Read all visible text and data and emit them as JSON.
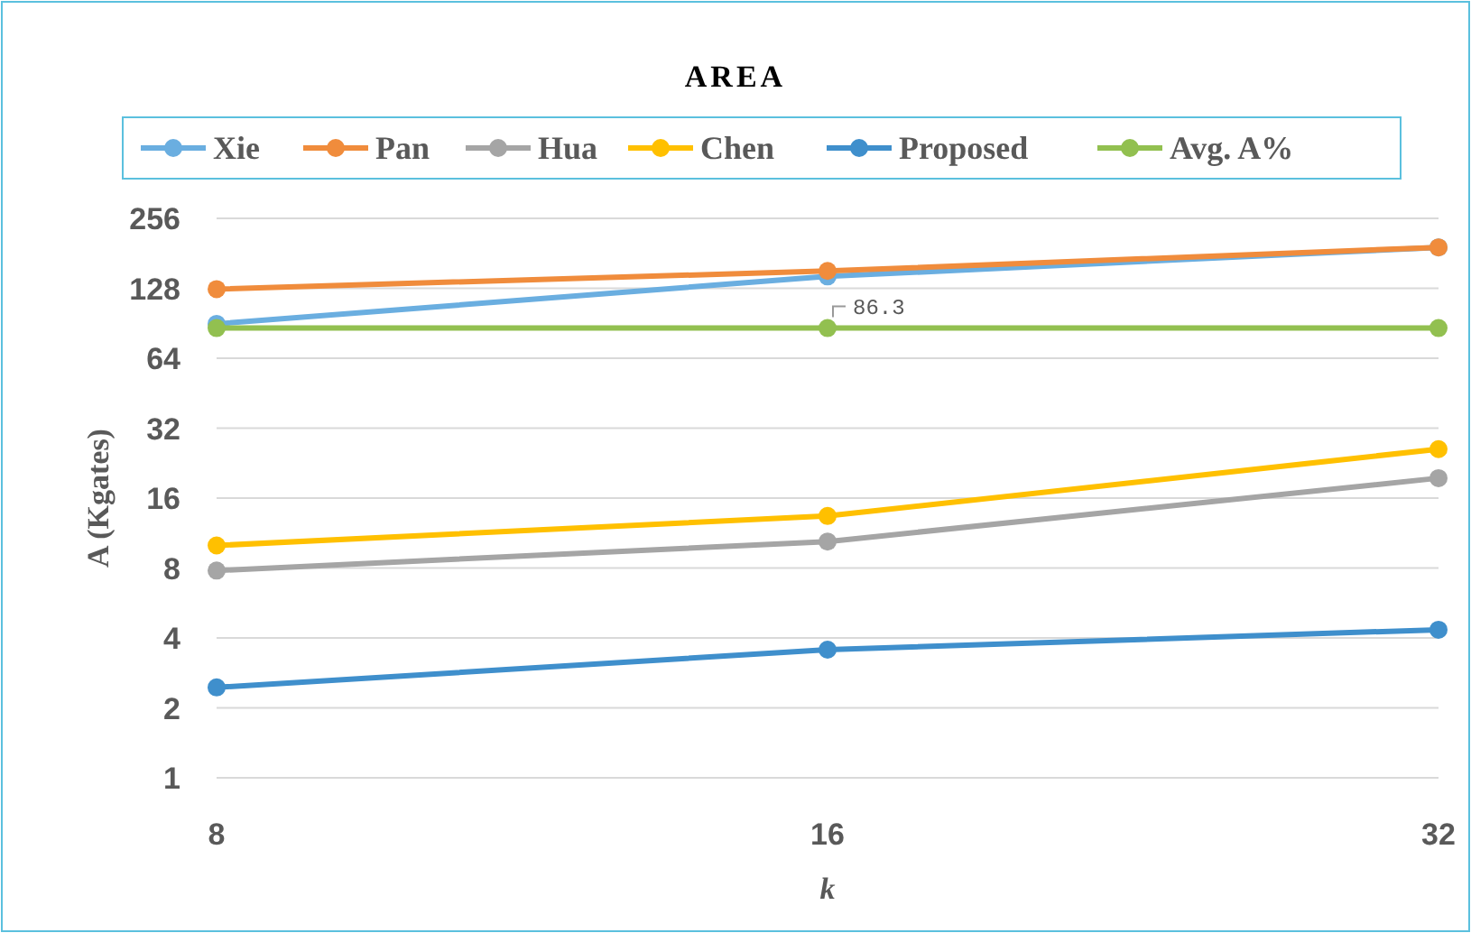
{
  "chart_data": {
    "type": "line",
    "title": "AREA",
    "xlabel": "k",
    "ylabel": "A (Kgates)",
    "categories": [
      "8",
      "16",
      "32"
    ],
    "series": [
      {
        "name": "Xie",
        "color": "#6aaee0",
        "values": [
          90,
          144,
          192
        ]
      },
      {
        "name": "Pan",
        "color": "#f08c3c",
        "values": [
          127,
          152,
          192
        ]
      },
      {
        "name": "Hua",
        "color": "#a5a5a5",
        "values": [
          7.8,
          10.4,
          19.5
        ]
      },
      {
        "name": "Chen",
        "color": "#ffc000",
        "values": [
          10,
          13.4,
          26
        ]
      },
      {
        "name": "Proposed",
        "color": "#3f8fcc",
        "values": [
          2.45,
          3.56,
          4.34
        ]
      },
      {
        "name": "Avg. A%",
        "color": "#92c050",
        "values": [
          86.3,
          86.3,
          86.3
        ],
        "value_labels": [
          null,
          "86.3",
          null
        ]
      }
    ],
    "log": "y",
    "ylim": [
      1,
      256
    ],
    "yticks": [
      1,
      2,
      4,
      8,
      16,
      32,
      64,
      128,
      256
    ],
    "grid": "y",
    "legend": "top",
    "marker": "circle",
    "line_style": "solid"
  }
}
